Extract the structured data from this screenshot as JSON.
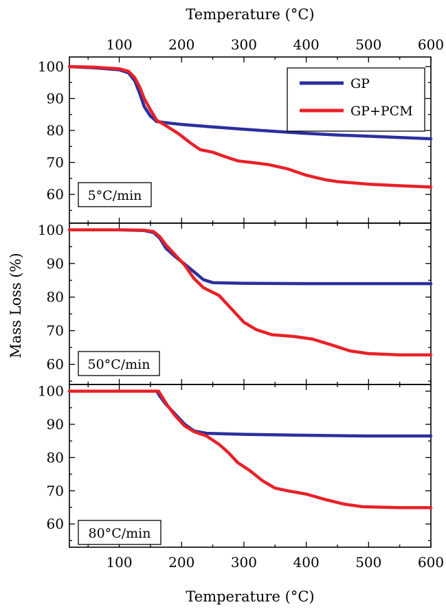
{
  "figure": {
    "top_axis_title": "Temperature (°C)",
    "bottom_axis_title": "Temperature (°C)",
    "y_axis_title": "Mass Loss (%)"
  },
  "chart_data": [
    {
      "type": "line",
      "rate_label": "5°C/min",
      "xlim": [
        20,
        600
      ],
      "ylim": [
        51,
        103
      ],
      "x_ticks": [
        100,
        200,
        300,
        400,
        500,
        600
      ],
      "y_ticks": [
        60,
        70,
        80,
        90,
        100
      ],
      "legend": {
        "placement": "top-right",
        "entries": [
          "GP",
          "GP+PCM"
        ]
      },
      "series": [
        {
          "name": "GP",
          "color": "#2b2f9e",
          "points": [
            [
              20,
              100
            ],
            [
              60,
              99.6
            ],
            [
              100,
              99
            ],
            [
              115,
              98
            ],
            [
              125,
              95.5
            ],
            [
              133,
              91.5
            ],
            [
              140,
              87.5
            ],
            [
              150,
              84.5
            ],
            [
              160,
              82.8
            ],
            [
              180,
              82.3
            ],
            [
              200,
              81.9
            ],
            [
              250,
              81.1
            ],
            [
              300,
              80.4
            ],
            [
              350,
              79.7
            ],
            [
              400,
              79.1
            ],
            [
              450,
              78.6
            ],
            [
              500,
              78.2
            ],
            [
              550,
              77.8
            ],
            [
              600,
              77.4
            ]
          ]
        },
        {
          "name": "GP+PCM",
          "color": "#e82128",
          "points": [
            [
              20,
              100
            ],
            [
              60,
              99.8
            ],
            [
              100,
              99.3
            ],
            [
              115,
              98.5
            ],
            [
              125,
              96.5
            ],
            [
              133,
              93.5
            ],
            [
              140,
              90
            ],
            [
              150,
              86.5
            ],
            [
              160,
              83.2
            ],
            [
              175,
              81.5
            ],
            [
              195,
              79
            ],
            [
              215,
              76
            ],
            [
              230,
              74
            ],
            [
              250,
              73.2
            ],
            [
              270,
              71.8
            ],
            [
              290,
              70.5
            ],
            [
              320,
              69.8
            ],
            [
              340,
              69.3
            ],
            [
              370,
              68
            ],
            [
              400,
              66
            ],
            [
              430,
              64.6
            ],
            [
              450,
              64
            ],
            [
              500,
              63.2
            ],
            [
              550,
              62.7
            ],
            [
              600,
              62.3
            ]
          ]
        }
      ]
    },
    {
      "type": "line",
      "rate_label": "50°C/min",
      "xlim": [
        20,
        600
      ],
      "ylim": [
        54,
        102
      ],
      "x_ticks": [
        100,
        200,
        300,
        400,
        500,
        600
      ],
      "y_ticks": [
        60,
        70,
        80,
        90,
        100
      ],
      "series": [
        {
          "name": "GP",
          "color": "#2b2f9e",
          "points": [
            [
              20,
              100
            ],
            [
              100,
              100
            ],
            [
              140,
              99.8
            ],
            [
              155,
              99.2
            ],
            [
              165,
              97.5
            ],
            [
              175,
              94.5
            ],
            [
              190,
              92
            ],
            [
              205,
              89.8
            ],
            [
              220,
              87.5
            ],
            [
              235,
              85.2
            ],
            [
              250,
              84.3
            ],
            [
              300,
              84.1
            ],
            [
              400,
              84
            ],
            [
              500,
              84
            ],
            [
              600,
              84
            ]
          ]
        },
        {
          "name": "GP+PCM",
          "color": "#e82128",
          "points": [
            [
              20,
              100
            ],
            [
              100,
              100
            ],
            [
              140,
              99.9
            ],
            [
              155,
              99.5
            ],
            [
              165,
              98
            ],
            [
              175,
              95.5
            ],
            [
              190,
              92.5
            ],
            [
              205,
              89.5
            ],
            [
              220,
              85.5
            ],
            [
              235,
              82.8
            ],
            [
              260,
              80.5
            ],
            [
              280,
              76.5
            ],
            [
              300,
              72.5
            ],
            [
              320,
              70.3
            ],
            [
              345,
              68.8
            ],
            [
              380,
              68.3
            ],
            [
              410,
              67.5
            ],
            [
              440,
              65.8
            ],
            [
              470,
              64
            ],
            [
              500,
              63.2
            ],
            [
              550,
              62.8
            ],
            [
              600,
              62.8
            ]
          ]
        }
      ]
    },
    {
      "type": "line",
      "rate_label": "80°C/min",
      "xlim": [
        20,
        600
      ],
      "ylim": [
        53,
        102
      ],
      "x_ticks": [
        100,
        200,
        300,
        400,
        500,
        600
      ],
      "y_ticks": [
        60,
        70,
        80,
        90,
        100
      ],
      "series": [
        {
          "name": "GP",
          "color": "#2b2f9e",
          "points": [
            [
              20,
              100
            ],
            [
              100,
              100
            ],
            [
              160,
              100
            ],
            [
              165,
              98.5
            ],
            [
              175,
              96
            ],
            [
              190,
              93
            ],
            [
              205,
              90
            ],
            [
              220,
              88
            ],
            [
              240,
              87.3
            ],
            [
              300,
              87
            ],
            [
              400,
              86.7
            ],
            [
              500,
              86.5
            ],
            [
              600,
              86.5
            ]
          ]
        },
        {
          "name": "GP+PCM",
          "color": "#e82128",
          "points": [
            [
              20,
              100
            ],
            [
              100,
              100
            ],
            [
              163,
              100
            ],
            [
              168,
              98.5
            ],
            [
              178,
              95.5
            ],
            [
              190,
              92.5
            ],
            [
              205,
              89.5
            ],
            [
              220,
              87.8
            ],
            [
              240,
              86.5
            ],
            [
              260,
              84
            ],
            [
              275,
              81.5
            ],
            [
              290,
              78.5
            ],
            [
              310,
              76
            ],
            [
              330,
              73
            ],
            [
              350,
              70.8
            ],
            [
              370,
              70
            ],
            [
              400,
              69
            ],
            [
              430,
              67.4
            ],
            [
              460,
              66
            ],
            [
              490,
              65.2
            ],
            [
              550,
              64.9
            ],
            [
              600,
              64.9
            ]
          ]
        }
      ]
    }
  ]
}
